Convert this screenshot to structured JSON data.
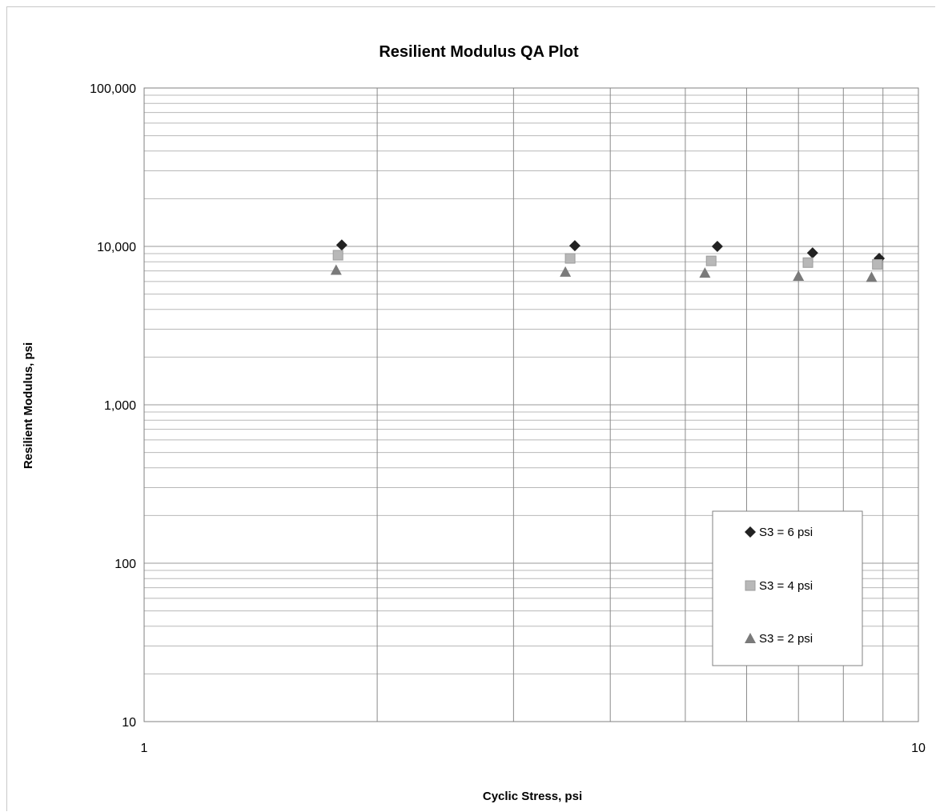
{
  "chart_data": {
    "type": "scatter",
    "title": "Resilient Modulus QA Plot",
    "xlabel": "Cyclic Stress,  psi",
    "ylabel": "Resilient Modulus,  psi",
    "x_scale": "log",
    "y_scale": "log",
    "xlim": [
      1,
      10
    ],
    "ylim": [
      10,
      100000
    ],
    "x_tick_labels": [
      "1",
      "10"
    ],
    "y_tick_labels": [
      "10",
      "100",
      "1,000",
      "10,000",
      "100,000"
    ],
    "grid": true,
    "legend_position": "lower-right",
    "series": [
      {
        "name": "S3  = 6 psi",
        "marker": "diamond",
        "color": "#222222",
        "x": [
          1.8,
          3.6,
          5.5,
          7.3,
          8.9
        ],
        "y": [
          10200,
          10100,
          10000,
          9100,
          8400
        ]
      },
      {
        "name": "S3  = 4 psi",
        "marker": "square",
        "color": "#b8b8b8",
        "x": [
          1.78,
          3.55,
          5.4,
          7.2,
          8.85
        ],
        "y": [
          8800,
          8400,
          8100,
          7900,
          7700
        ]
      },
      {
        "name": "S3  = 2 psi",
        "marker": "triangle",
        "color": "#7a7a7a",
        "x": [
          1.77,
          3.5,
          5.3,
          7.0,
          8.7
        ],
        "y": [
          7100,
          6900,
          6800,
          6500,
          6400
        ]
      }
    ]
  }
}
